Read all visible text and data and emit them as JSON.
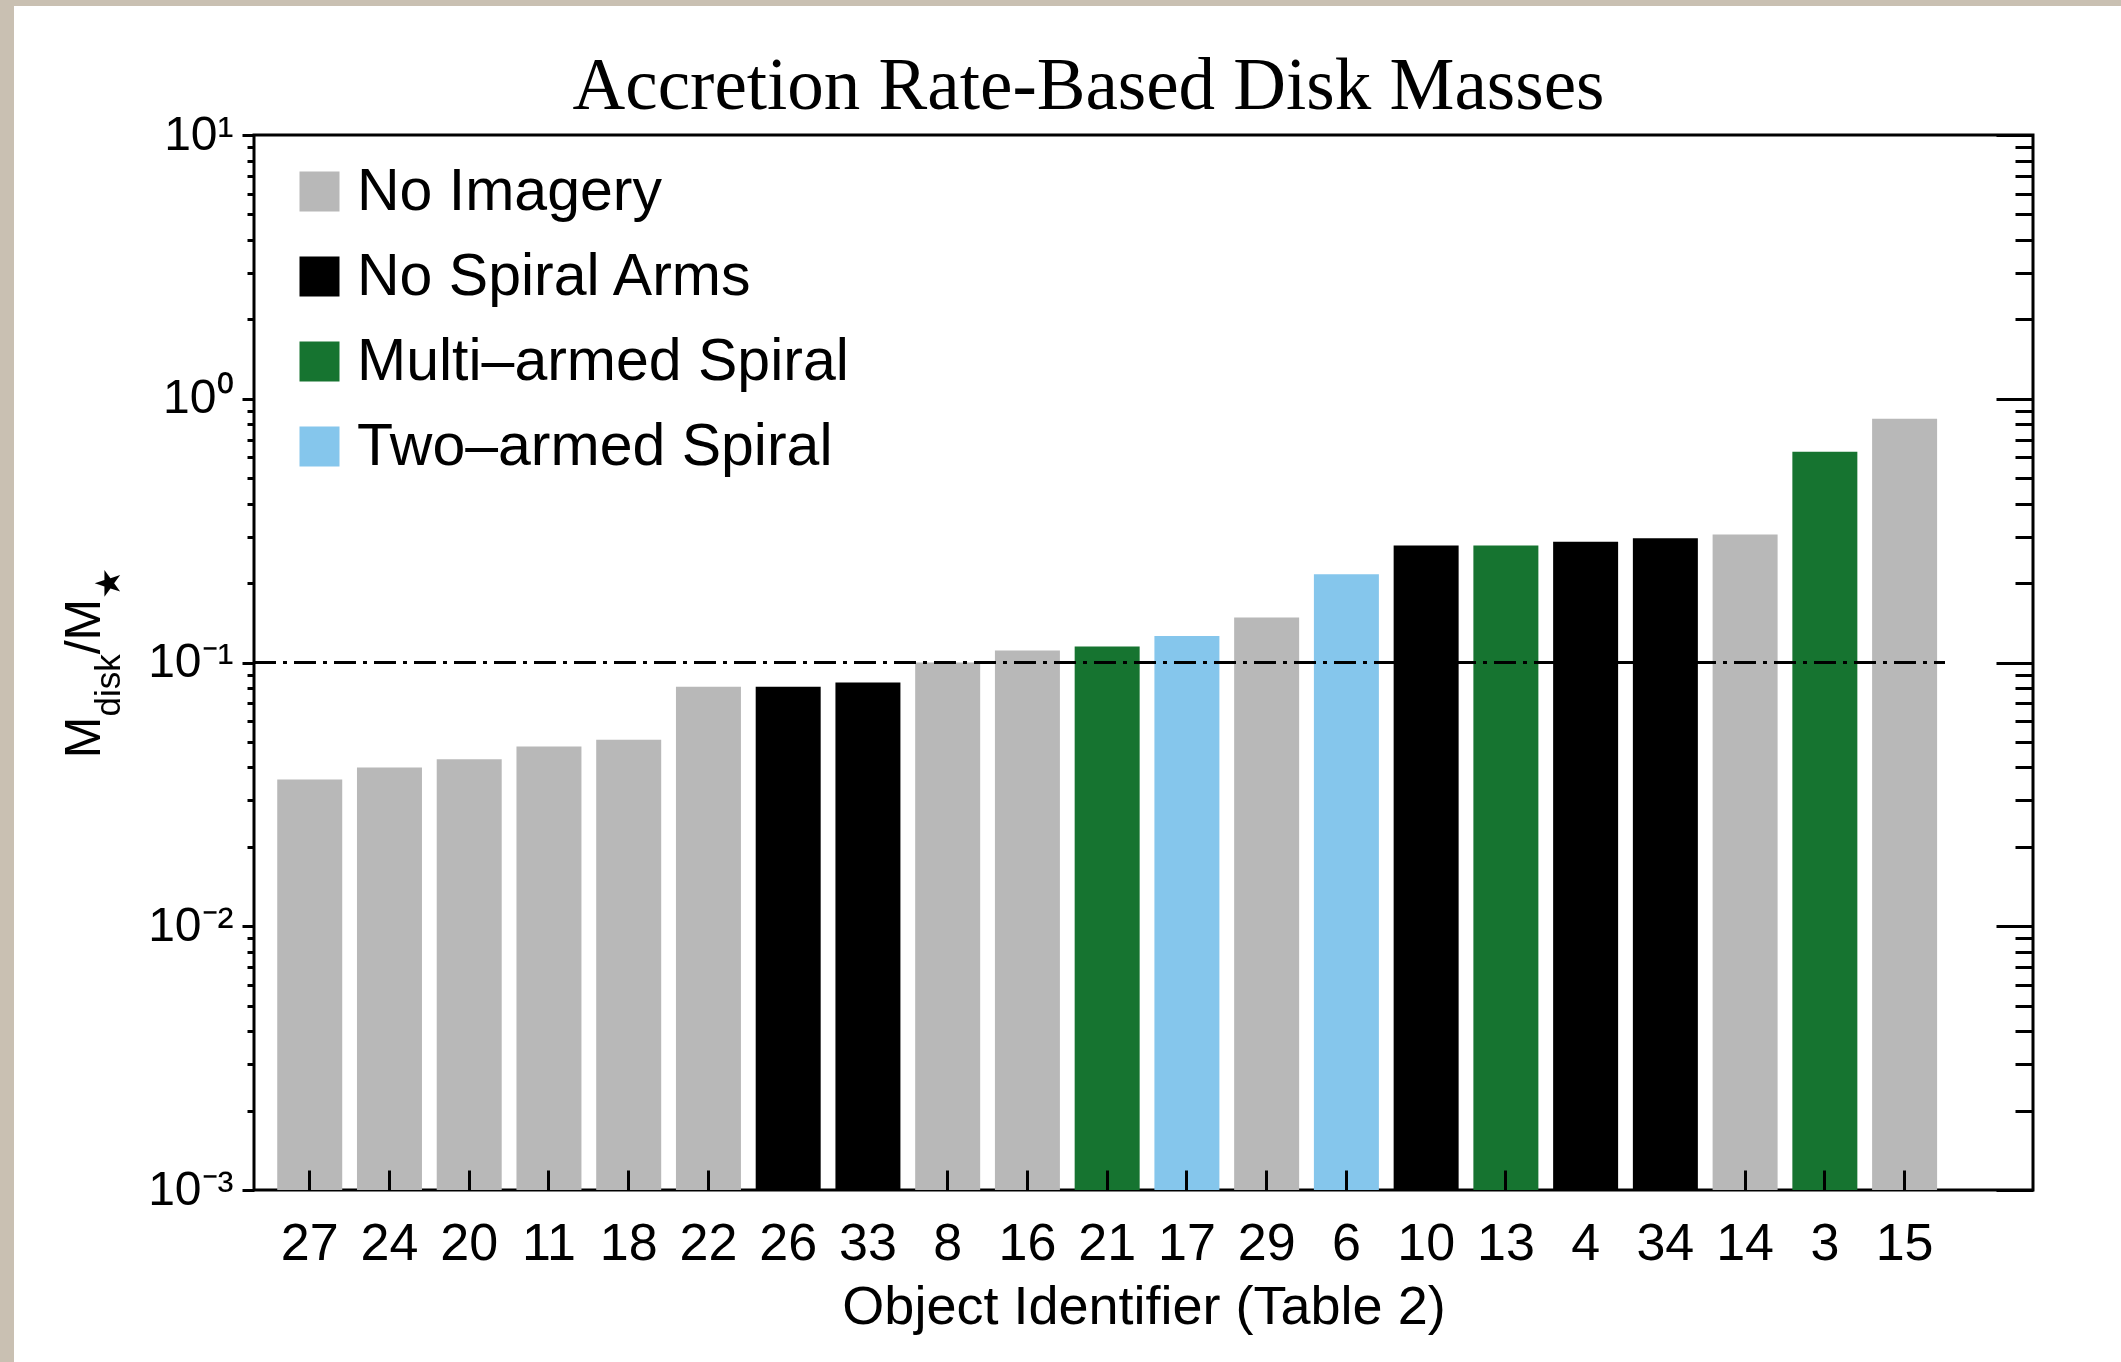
{
  "chart_data": {
    "type": "bar",
    "title": "Accretion Rate-Based Disk Masses",
    "xlabel": "Object Identifier (Table 2)",
    "ylabel": "M$_{disk}$/M$_{★}$",
    "categories": [
      "27",
      "24",
      "20",
      "11",
      "18",
      "22",
      "26",
      "33",
      "8",
      "16",
      "21",
      "17",
      "29",
      "6",
      "10",
      "13",
      "4",
      "34",
      "14",
      "3",
      "15"
    ],
    "series": [
      {
        "name": "No Imagery",
        "color": "#b8b8b8",
        "values": [
          0.036,
          0.04,
          0.043,
          0.048,
          0.051,
          0.081,
          null,
          null,
          0.1,
          0.111,
          null,
          null,
          0.148,
          null,
          null,
          null,
          null,
          null,
          0.306,
          null,
          0.84
        ]
      },
      {
        "name": "No Spiral Arms",
        "color": "#000000",
        "values": [
          null,
          null,
          null,
          null,
          null,
          null,
          0.081,
          0.084,
          null,
          null,
          null,
          null,
          null,
          null,
          0.278,
          null,
          0.287,
          0.296,
          null,
          null,
          null
        ]
      },
      {
        "name": "Multi–armed Spiral",
        "color": "#167430",
        "values": [
          null,
          null,
          null,
          null,
          null,
          null,
          null,
          null,
          null,
          null,
          0.115,
          null,
          null,
          null,
          null,
          0.278,
          null,
          null,
          null,
          0.63,
          null
        ]
      },
      {
        "name": "Two–armed Spiral",
        "color": "#85c6ec",
        "values": [
          null,
          null,
          null,
          null,
          null,
          null,
          null,
          null,
          null,
          null,
          null,
          0.126,
          null,
          0.216,
          null,
          null,
          null,
          null,
          null,
          null,
          null
        ]
      }
    ],
    "log": true,
    "ylim": [
      0.001,
      10
    ],
    "yticks": [
      {
        "value": 0.001,
        "label": "10⁻³"
      },
      {
        "value": 0.002,
        "label": null
      },
      {
        "value": 0.003,
        "label": null
      },
      {
        "value": 0.004,
        "label": null
      },
      {
        "value": 0.005,
        "label": null
      },
      {
        "value": 0.006,
        "label": null
      },
      {
        "value": 0.007,
        "label": null
      },
      {
        "value": 0.008,
        "label": null
      },
      {
        "value": 0.009,
        "label": null
      },
      {
        "value": 0.01,
        "label": "10⁻²"
      },
      {
        "value": 0.02,
        "label": null
      },
      {
        "value": 0.03,
        "label": null
      },
      {
        "value": 0.04,
        "label": null
      },
      {
        "value": 0.05,
        "label": null
      },
      {
        "value": 0.06,
        "label": null
      },
      {
        "value": 0.07,
        "label": null
      },
      {
        "value": 0.08,
        "label": null
      },
      {
        "value": 0.09,
        "label": null
      },
      {
        "value": 0.1,
        "label": "10⁻¹"
      },
      {
        "value": 0.2,
        "label": null
      },
      {
        "value": 0.3,
        "label": null
      },
      {
        "value": 0.4,
        "label": null
      },
      {
        "value": 0.5,
        "label": null
      },
      {
        "value": 0.6,
        "label": null
      },
      {
        "value": 0.7,
        "label": null
      },
      {
        "value": 0.8,
        "label": null
      },
      {
        "value": 0.9,
        "label": null
      },
      {
        "value": 1,
        "label": "10⁰"
      },
      {
        "value": 2,
        "label": null
      },
      {
        "value": 3,
        "label": null
      },
      {
        "value": 4,
        "label": null
      },
      {
        "value": 5,
        "label": null
      },
      {
        "value": 6,
        "label": null
      },
      {
        "value": 7,
        "label": null
      },
      {
        "value": 8,
        "label": null
      },
      {
        "value": 9,
        "label": null
      },
      {
        "value": 10,
        "label": "10¹"
      }
    ],
    "ref_lines": [
      {
        "axis": "y",
        "value": 0.1,
        "color": "#000000",
        "line_style": "dashdot"
      }
    ],
    "legend": "top left"
  }
}
